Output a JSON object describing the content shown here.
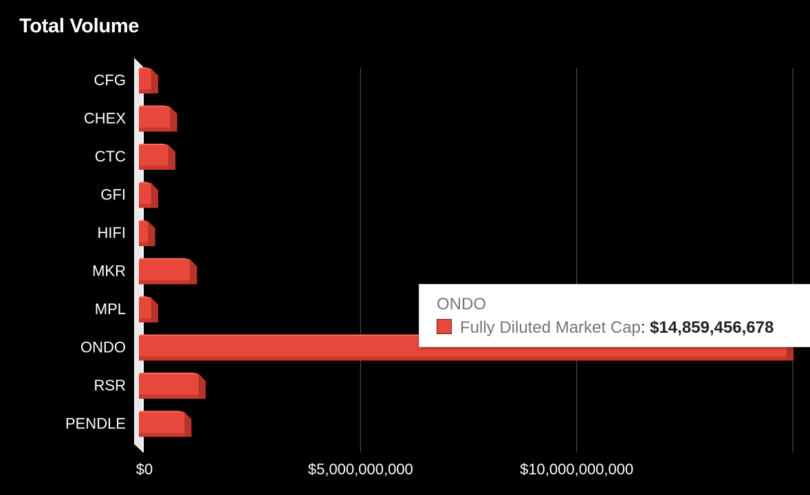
{
  "chart_data": {
    "type": "bar",
    "orientation": "horizontal",
    "title": "Total Volume",
    "categories": [
      "CFG",
      "CHEX",
      "CTC",
      "GFI",
      "HIFI",
      "MKR",
      "MPL",
      "ONDO",
      "RSR",
      "PENDLE"
    ],
    "series": [
      {
        "name": "Fully Diluted Market Cap",
        "color": "#e8473b",
        "values": [
          160000000,
          600000000,
          560000000,
          160000000,
          90000000,
          1060000000,
          160000000,
          14859456678,
          1260000000,
          930000000
        ]
      }
    ],
    "xlim": [
      0,
      15000000000
    ],
    "x_ticks": [
      {
        "value": 0,
        "label": "$0"
      },
      {
        "value": 5000000000,
        "label": "$5,000,000,000"
      },
      {
        "value": 10000000000,
        "label": "$10,000,000,000"
      },
      {
        "value": 15000000000,
        "label": ""
      }
    ],
    "grid": true,
    "legend": "none",
    "three_d": true
  },
  "tooltip": {
    "category": "ONDO",
    "series_label": "Fully Diluted Market Cap",
    "separator": ":",
    "value": "$14,859,456,678"
  }
}
